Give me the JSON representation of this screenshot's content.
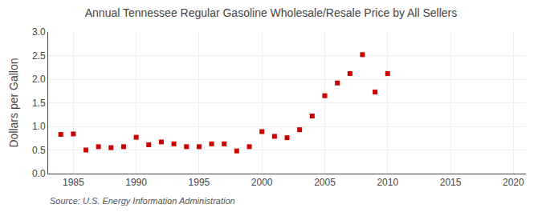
{
  "chart_data": {
    "type": "scatter",
    "title": "Annual Tennessee Regular Gasoline Wholesale/Resale Price by All Sellers",
    "ylabel": "Dollars per Gallon",
    "annotations": [
      "Source: U.S. Energy Information Administration"
    ],
    "x": [
      1984,
      1985,
      1986,
      1987,
      1988,
      1989,
      1990,
      1991,
      1992,
      1993,
      1994,
      1995,
      1996,
      1997,
      1998,
      1999,
      2000,
      2001,
      2002,
      2003,
      2004,
      2005,
      2006,
      2007,
      2008,
      2009,
      2010
    ],
    "values": [
      0.83,
      0.84,
      0.5,
      0.57,
      0.55,
      0.57,
      0.77,
      0.61,
      0.67,
      0.63,
      0.57,
      0.57,
      0.63,
      0.63,
      0.48,
      0.57,
      0.89,
      0.79,
      0.76,
      0.93,
      1.22,
      1.65,
      1.92,
      2.12,
      2.52,
      1.73,
      2.12
    ],
    "color": "#cc0000",
    "marker": "square",
    "xlim": [
      1983,
      2021
    ],
    "xticks": [
      1985,
      1990,
      1995,
      2000,
      2005,
      2010,
      2015,
      2020
    ],
    "ylim": [
      0.0,
      3.0
    ],
    "yticks": [
      {
        "value": 0,
        "label": "0.0"
      },
      0.5,
      {
        "value": 1,
        "label": "1.0"
      },
      1.5,
      {
        "value": 2,
        "label": "2.0"
      },
      2.5,
      {
        "value": 3,
        "label": "3.0"
      }
    ],
    "grid": true
  }
}
